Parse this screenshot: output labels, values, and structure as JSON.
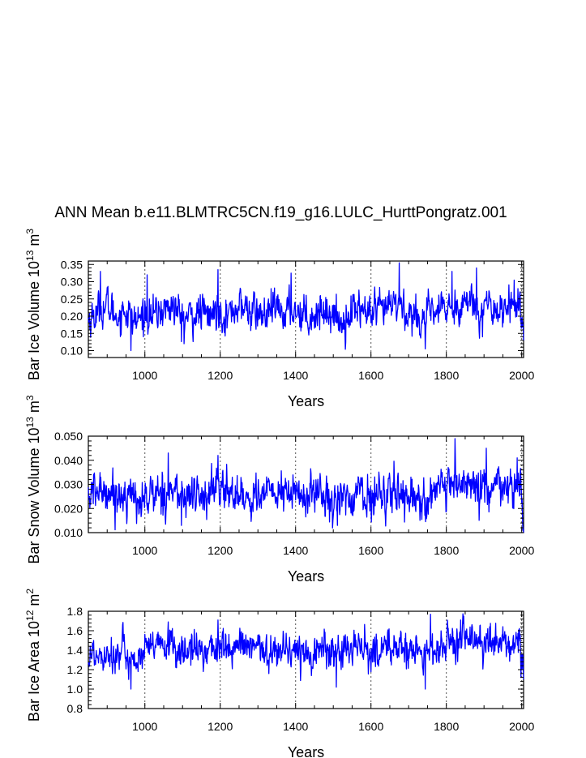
{
  "title": "ANN Mean b.e11.BLMTRC5CN.f19_g16.LULC_HurttPongratz.001",
  "colors": {
    "series": "#0000ff",
    "axis": "#000000",
    "refline": "#555555"
  },
  "chart_data": [
    {
      "type": "line",
      "title": "",
      "ylabel_main": "Bar Ice Volume 10",
      "ylabel_exp": "13",
      "ylabel_unit": " m",
      "ylabel_unit_exp": "3",
      "xlabel": "Years",
      "xlim": [
        850,
        2005
      ],
      "ylim": [
        0.08,
        0.36
      ],
      "xticks": [
        1000,
        1200,
        1400,
        1600,
        1800,
        2000
      ],
      "xtick_labels": [
        "1000",
        "1200",
        "1400",
        "1600",
        "1800",
        "2000"
      ],
      "yticks": [
        0.1,
        0.15,
        0.2,
        0.25,
        0.3,
        0.35
      ],
      "ytick_labels": [
        "0.10",
        "0.15",
        "0.20",
        "0.25",
        "0.30",
        "0.35"
      ],
      "vlines": [
        1000,
        1200,
        1400,
        1600,
        1800,
        2000
      ],
      "x_start": 850,
      "x_end": 2005,
      "anchor_x": [
        850,
        875,
        900,
        925,
        950,
        975,
        1000,
        1025,
        1050,
        1075,
        1100,
        1125,
        1150,
        1175,
        1195,
        1220,
        1245,
        1270,
        1295,
        1320,
        1345,
        1370,
        1395,
        1420,
        1445,
        1470,
        1495,
        1520,
        1545,
        1570,
        1595,
        1620,
        1645,
        1670,
        1695,
        1720,
        1745,
        1770,
        1795,
        1820,
        1845,
        1870,
        1895,
        1920,
        1945,
        1970,
        1995,
        2005
      ],
      "anchor_y": [
        0.19,
        0.21,
        0.23,
        0.2,
        0.22,
        0.18,
        0.21,
        0.2,
        0.22,
        0.23,
        0.19,
        0.2,
        0.21,
        0.2,
        0.22,
        0.2,
        0.23,
        0.22,
        0.21,
        0.2,
        0.22,
        0.21,
        0.22,
        0.21,
        0.2,
        0.22,
        0.21,
        0.18,
        0.21,
        0.23,
        0.2,
        0.21,
        0.22,
        0.24,
        0.21,
        0.2,
        0.19,
        0.21,
        0.22,
        0.23,
        0.24,
        0.24,
        0.22,
        0.23,
        0.22,
        0.23,
        0.24,
        0.15
      ],
      "noise_amp": 0.035,
      "spikes": [
        {
          "x": 882,
          "y": 0.33
        },
        {
          "x": 963,
          "y": 0.1
        },
        {
          "x": 1006,
          "y": 0.32
        },
        {
          "x": 1194,
          "y": 0.335
        },
        {
          "x": 1104,
          "y": 0.12
        },
        {
          "x": 1388,
          "y": 0.325
        },
        {
          "x": 1675,
          "y": 0.355
        },
        {
          "x": 1744,
          "y": 0.105
        },
        {
          "x": 1815,
          "y": 0.33
        },
        {
          "x": 1880,
          "y": 0.34
        },
        {
          "x": 1990,
          "y": 0.28
        }
      ]
    },
    {
      "type": "line",
      "title": "",
      "ylabel_main": "Bar Snow Volume 10",
      "ylabel_exp": "13",
      "ylabel_unit": " m",
      "ylabel_unit_exp": "3",
      "xlabel": "Years",
      "xlim": [
        850,
        2005
      ],
      "ylim": [
        0.01,
        0.05
      ],
      "xticks": [
        1000,
        1200,
        1400,
        1600,
        1800,
        2000
      ],
      "xtick_labels": [
        "1000",
        "1200",
        "1400",
        "1600",
        "1800",
        "2000"
      ],
      "yticks": [
        0.01,
        0.02,
        0.03,
        0.04,
        0.05
      ],
      "ytick_labels": [
        "0.010",
        "0.020",
        "0.030",
        "0.040",
        "0.050"
      ],
      "vlines": [
        1000,
        1200,
        1400,
        1600,
        1800,
        2000
      ],
      "x_start": 850,
      "x_end": 2005,
      "anchor_x": [
        850,
        875,
        900,
        925,
        950,
        975,
        1000,
        1025,
        1050,
        1075,
        1100,
        1125,
        1150,
        1175,
        1195,
        1220,
        1245,
        1270,
        1295,
        1320,
        1345,
        1370,
        1395,
        1420,
        1445,
        1470,
        1495,
        1520,
        1545,
        1570,
        1595,
        1620,
        1645,
        1670,
        1695,
        1720,
        1745,
        1770,
        1795,
        1820,
        1845,
        1870,
        1895,
        1920,
        1945,
        1970,
        1995,
        2005
      ],
      "anchor_y": [
        0.025,
        0.027,
        0.028,
        0.025,
        0.027,
        0.023,
        0.024,
        0.026,
        0.027,
        0.028,
        0.024,
        0.026,
        0.025,
        0.026,
        0.03,
        0.026,
        0.027,
        0.024,
        0.026,
        0.025,
        0.027,
        0.026,
        0.027,
        0.024,
        0.026,
        0.027,
        0.025,
        0.022,
        0.025,
        0.027,
        0.024,
        0.025,
        0.027,
        0.028,
        0.025,
        0.025,
        0.023,
        0.026,
        0.027,
        0.029,
        0.03,
        0.03,
        0.027,
        0.028,
        0.028,
        0.028,
        0.029,
        0.016
      ],
      "noise_amp": 0.0055,
      "spikes": [
        {
          "x": 1062,
          "y": 0.043
        },
        {
          "x": 1194,
          "y": 0.042
        },
        {
          "x": 1097,
          "y": 0.013
        },
        {
          "x": 1823,
          "y": 0.049
        },
        {
          "x": 1906,
          "y": 0.045
        },
        {
          "x": 1511,
          "y": 0.013
        },
        {
          "x": 1988,
          "y": 0.041
        }
      ]
    },
    {
      "type": "line",
      "title": "",
      "ylabel_main": "Bar Ice Area 10",
      "ylabel_exp": "12",
      "ylabel_unit": " m",
      "ylabel_unit_exp": "2",
      "xlabel": "Years",
      "xlim": [
        850,
        2005
      ],
      "ylim": [
        0.8,
        1.8
      ],
      "xticks": [
        1000,
        1200,
        1400,
        1600,
        1800,
        2000
      ],
      "xtick_labels": [
        "1000",
        "1200",
        "1400",
        "1600",
        "1800",
        "2000"
      ],
      "yticks": [
        0.8,
        1.0,
        1.2,
        1.4,
        1.6,
        1.8
      ],
      "ytick_labels": [
        "0.8",
        "1.0",
        "1.2",
        "1.4",
        "1.6",
        "1.8"
      ],
      "vlines": [
        1000,
        1200,
        1400,
        1600,
        1800,
        2000
      ],
      "x_start": 850,
      "x_end": 2005,
      "anchor_x": [
        850,
        875,
        900,
        925,
        950,
        975,
        1000,
        1025,
        1050,
        1075,
        1100,
        1125,
        1150,
        1175,
        1195,
        1220,
        1245,
        1270,
        1295,
        1320,
        1345,
        1370,
        1395,
        1420,
        1445,
        1470,
        1495,
        1520,
        1545,
        1570,
        1595,
        1620,
        1645,
        1670,
        1695,
        1720,
        1745,
        1770,
        1795,
        1820,
        1845,
        1870,
        1895,
        1920,
        1945,
        1970,
        1995,
        2005
      ],
      "anchor_y": [
        1.35,
        1.36,
        1.4,
        1.33,
        1.38,
        1.28,
        1.38,
        1.42,
        1.44,
        1.45,
        1.36,
        1.4,
        1.41,
        1.42,
        1.44,
        1.39,
        1.44,
        1.43,
        1.41,
        1.38,
        1.42,
        1.4,
        1.41,
        1.38,
        1.36,
        1.43,
        1.4,
        1.34,
        1.4,
        1.44,
        1.37,
        1.4,
        1.42,
        1.45,
        1.4,
        1.38,
        1.34,
        1.41,
        1.43,
        1.47,
        1.5,
        1.49,
        1.46,
        1.48,
        1.47,
        1.46,
        1.48,
        1.22
      ],
      "noise_amp": 0.12,
      "spikes": [
        {
          "x": 963,
          "y": 1.0
        },
        {
          "x": 1062,
          "y": 1.69
        },
        {
          "x": 1194,
          "y": 1.71
        },
        {
          "x": 1508,
          "y": 1.02
        },
        {
          "x": 1744,
          "y": 1.0
        },
        {
          "x": 1758,
          "y": 1.77
        },
        {
          "x": 1838,
          "y": 1.71
        },
        {
          "x": 1998,
          "y": 1.12
        }
      ]
    }
  ]
}
